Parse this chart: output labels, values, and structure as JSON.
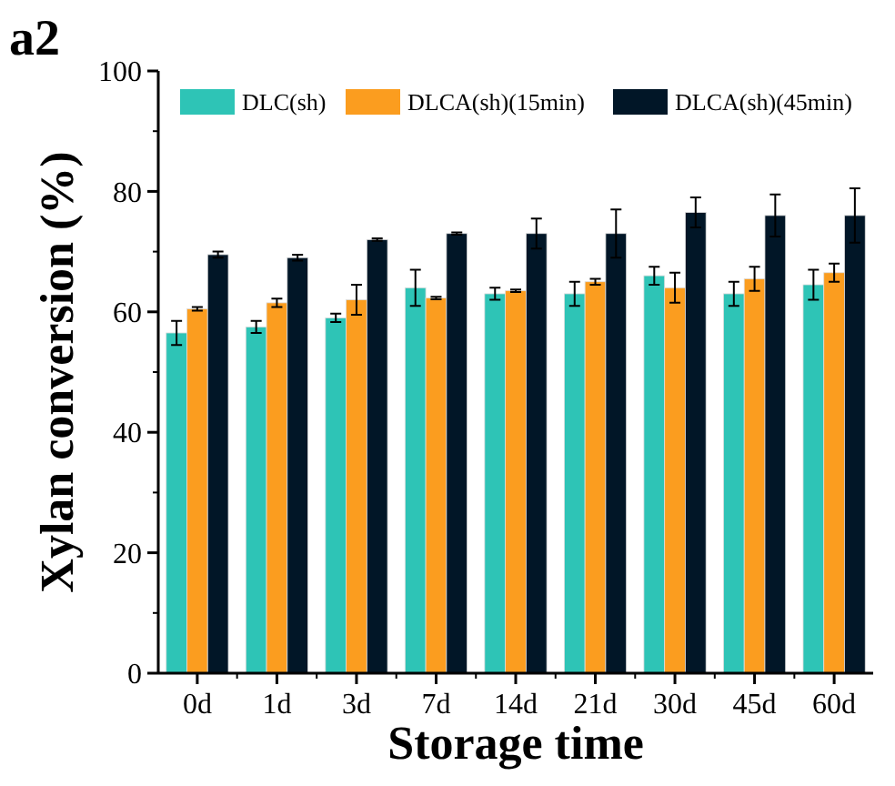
{
  "chart_data": {
    "type": "bar",
    "title": "a2",
    "xlabel": "Storage time",
    "ylabel": "Xylan conversion (%)",
    "categories": [
      "0d",
      "1d",
      "3d",
      "7d",
      "14d",
      "21d",
      "30d",
      "45d",
      "60d"
    ],
    "series": [
      {
        "name": "DLC(sh)",
        "color": "#2ec4b6",
        "values": [
          56.5,
          57.5,
          59,
          64,
          63,
          63,
          66,
          63,
          64.5
        ],
        "errors": [
          2,
          1,
          0.7,
          3,
          1,
          2,
          1.5,
          2,
          2.5
        ]
      },
      {
        "name": "DLCA(sh)(15min)",
        "color": "#fb9d1f",
        "values": [
          60.5,
          61.5,
          62,
          62.3,
          63.5,
          65,
          64,
          65.5,
          66.5
        ],
        "errors": [
          0.3,
          0.7,
          2.5,
          0.2,
          0.2,
          0.5,
          2.5,
          2,
          1.5
        ]
      },
      {
        "name": "DLCA(sh)(45min)",
        "color": "#011627",
        "values": [
          69.5,
          69,
          72,
          73,
          73,
          73,
          76.5,
          76,
          76
        ],
        "errors": [
          0.5,
          0.5,
          0.2,
          0.2,
          2.5,
          4,
          2.5,
          3.5,
          4.5
        ]
      }
    ],
    "ylim": [
      0,
      100
    ],
    "yticks": [
      0,
      20,
      40,
      60,
      80,
      100
    ],
    "legend": "top",
    "grid": false
  }
}
